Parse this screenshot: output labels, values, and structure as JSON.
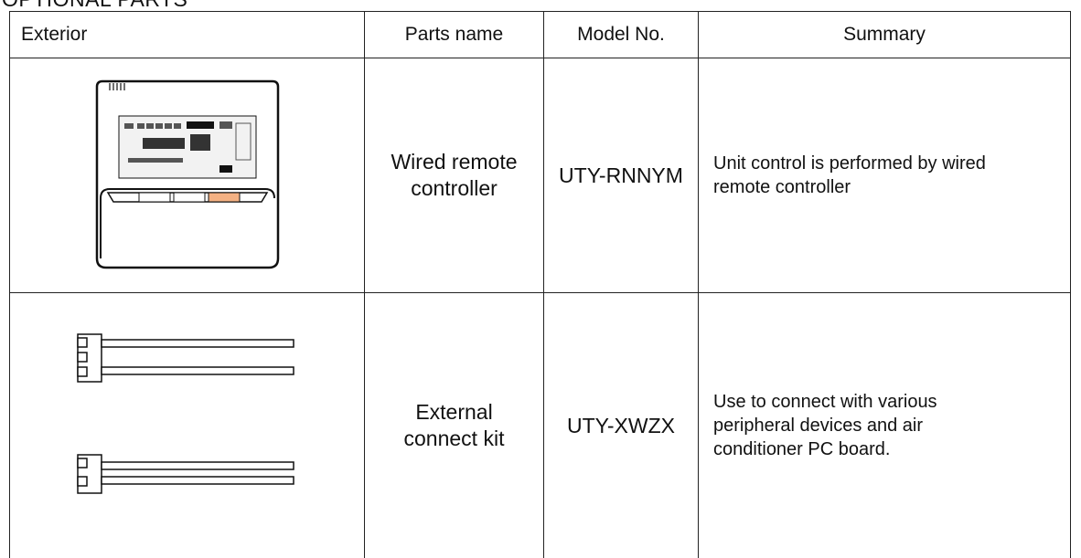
{
  "title": "OPTIONAL PARTS",
  "table": {
    "headers": [
      "Exterior",
      "Parts name",
      "Model No.",
      "Summary"
    ],
    "rows": [
      [
        "Wired remote controller",
        "UTY-RNNYM",
        "Unit control is performed by wired remote controller"
      ],
      [
        "External connect kit",
        "UTY-XWZX",
        "Use to connect with various peripheral devices and air conditioner PC board."
      ]
    ]
  }
}
